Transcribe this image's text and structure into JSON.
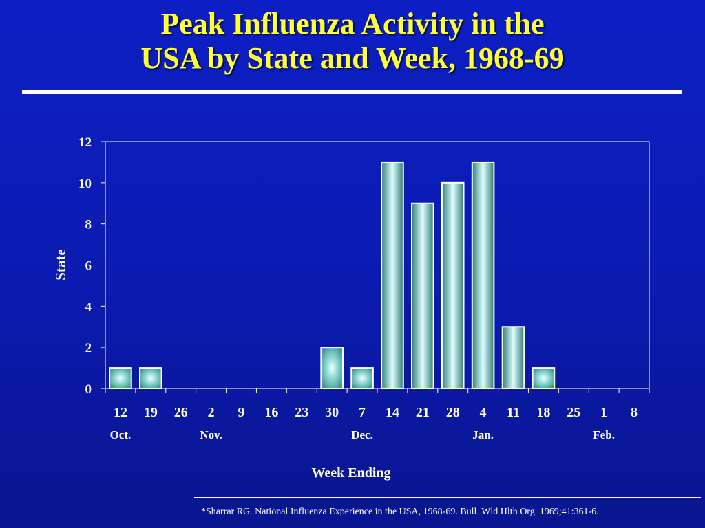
{
  "slide": {
    "title_line1": "Peak Influenza Activity in the",
    "title_line2": "USA by State and Week, 1968-69",
    "footnote": "*Sharrar RG. National Influenza Experience in the USA, 1968-69. Bull. Wld Hlth Org. 1969;41:361-6."
  },
  "colors": {
    "background": "#0b1bb0",
    "title": "#ffff33",
    "bar_edge": "#2e7f78",
    "bar_center": "#e8ffff",
    "axis": "#ffffff"
  },
  "chart_data": {
    "type": "bar",
    "title": "",
    "xlabel": "Week Ending",
    "ylabel": "State",
    "ylim": [
      0,
      12
    ],
    "yticks": [
      0,
      2,
      4,
      6,
      8,
      10,
      12
    ],
    "categories": [
      "12",
      "19",
      "26",
      "2",
      "9",
      "16",
      "23",
      "30",
      "7",
      "14",
      "21",
      "28",
      "4",
      "11",
      "18",
      "25",
      "1",
      "8"
    ],
    "values": [
      1,
      1,
      0,
      0,
      0,
      0,
      0,
      2,
      1,
      11,
      9,
      10,
      11,
      3,
      1,
      0,
      0,
      0
    ],
    "month_labels": [
      {
        "label": "Oct.",
        "category_index": 0
      },
      {
        "label": "Nov.",
        "category_index": 3
      },
      {
        "label": "Dec.",
        "category_index": 8
      },
      {
        "label": "Jan.",
        "category_index": 12
      },
      {
        "label": "Feb.",
        "category_index": 16
      }
    ],
    "grid": false,
    "legend": "none"
  }
}
